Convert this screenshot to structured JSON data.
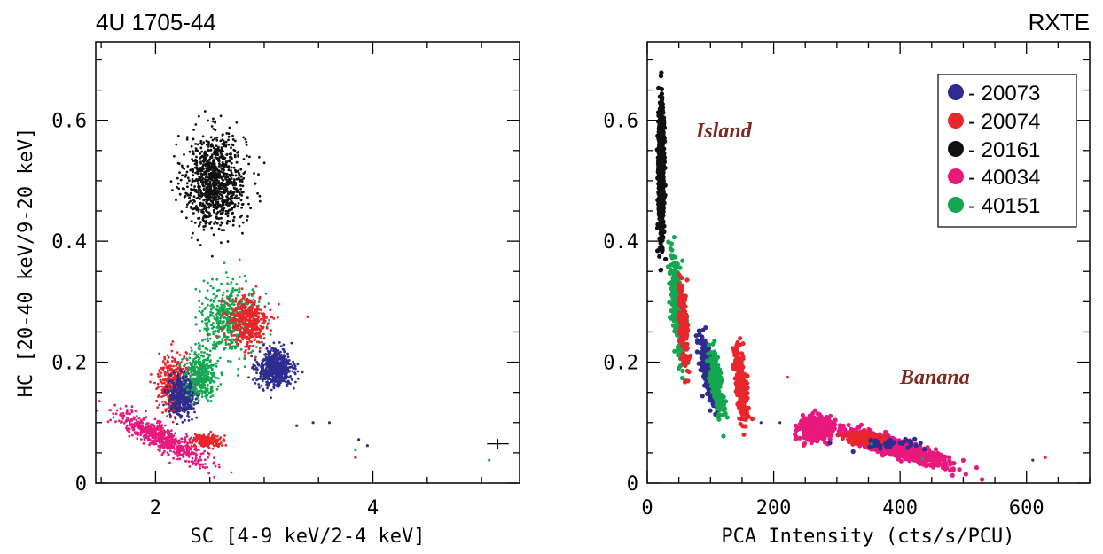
{
  "title_left": "4U 1705-44",
  "title_right": "RXTE",
  "colors": {
    "20073": "#2e2d8f",
    "20074": "#e8262b",
    "20161": "#111111",
    "40034": "#e8197c",
    "40151": "#14a650"
  },
  "legend": {
    "entries": [
      {
        "label": "- 20073",
        "obs": "20073"
      },
      {
        "label": "- 20074",
        "obs": "20074"
      },
      {
        "label": "- 20161",
        "obs": "20161"
      },
      {
        "label": "- 40034",
        "obs": "40034"
      },
      {
        "label": "- 40151",
        "obs": "40151"
      }
    ],
    "placement": "top-right"
  },
  "chart_data": [
    {
      "type": "scatter",
      "xlabel": "SC [4-9 keV/2-4 keV]",
      "ylabel": "HC [20-40 keV/9-20 keV]",
      "xlim": [
        1.45,
        5.35
      ],
      "ylim": [
        0,
        0.73
      ],
      "xticks": [
        "2",
        "4"
      ],
      "yticks": [
        "0",
        "0.2",
        "0.4",
        "0.6"
      ],
      "error_cross": {
        "x": 5.15,
        "y": 0.065,
        "dx": 0.1,
        "dy": 0.008
      },
      "clusters": [
        {
          "obs": "20161",
          "cx": 2.55,
          "cy": 0.5,
          "sx": 0.14,
          "sy": 0.038,
          "n": 1000
        },
        {
          "obs": "40151",
          "cx": 2.68,
          "cy": 0.27,
          "sx": 0.14,
          "sy": 0.03,
          "n": 500
        },
        {
          "obs": "20074",
          "cx": 2.85,
          "cy": 0.265,
          "sx": 0.09,
          "sy": 0.022,
          "n": 420
        },
        {
          "obs": "20073",
          "cx": 3.1,
          "cy": 0.19,
          "sx": 0.08,
          "sy": 0.015,
          "n": 600
        },
        {
          "obs": "20074",
          "cx": 2.15,
          "cy": 0.165,
          "sx": 0.06,
          "sy": 0.025,
          "n": 350
        },
        {
          "obs": "20073",
          "cx": 2.25,
          "cy": 0.145,
          "sx": 0.06,
          "sy": 0.017,
          "n": 500
        },
        {
          "obs": "40151",
          "cx": 2.42,
          "cy": 0.18,
          "sx": 0.07,
          "sy": 0.018,
          "n": 350
        },
        {
          "obs": "20074",
          "cx": 2.48,
          "cy": 0.07,
          "sx": 0.07,
          "sy": 0.005,
          "n": 200
        },
        {
          "obs": "40034",
          "cx": 2.05,
          "cy": 0.075,
          "sx": 0.21,
          "sy": 0.01,
          "n": 600,
          "slope": -0.09
        }
      ],
      "outliers": [
        {
          "obs": "20073",
          "x": 3.3,
          "y": 0.095
        },
        {
          "obs": "20073",
          "x": 3.45,
          "y": 0.1
        },
        {
          "obs": "20073",
          "x": 3.6,
          "y": 0.1
        },
        {
          "obs": "20073",
          "x": 3.87,
          "y": 0.072
        },
        {
          "obs": "20073",
          "x": 3.95,
          "y": 0.062
        },
        {
          "obs": "20074",
          "x": 3.84,
          "y": 0.042
        },
        {
          "obs": "40151",
          "x": 3.84,
          "y": 0.055
        },
        {
          "obs": "40151",
          "x": 5.07,
          "y": 0.038
        },
        {
          "obs": "20074",
          "x": 3.4,
          "y": 0.275
        }
      ]
    },
    {
      "type": "scatter",
      "xlabel": "PCA Intensity (cts/s/PCU)",
      "ylabel": "",
      "xlim": [
        0,
        700
      ],
      "ylim": [
        0,
        0.73
      ],
      "xticks": [
        "0",
        "200",
        "400",
        "600"
      ],
      "yticks": [
        "0",
        "0.2",
        "0.4",
        "0.6"
      ],
      "annotations": [
        {
          "text": "Island",
          "x": 85,
          "y": 0.58
        },
        {
          "text": "Banana",
          "x": 390,
          "y": 0.17
        }
      ],
      "clusters": [
        {
          "obs": "20161",
          "cx": 22,
          "cy": 0.515,
          "sx": 2.2,
          "sy": 0.055,
          "n": 700
        },
        {
          "obs": "40151",
          "cx": 48,
          "cy": 0.29,
          "sx": 6,
          "sy": 0.035,
          "n": 300,
          "slope": -0.004
        },
        {
          "obs": "20074",
          "cx": 57,
          "cy": 0.26,
          "sx": 4,
          "sy": 0.03,
          "n": 200,
          "slope": -0.005
        },
        {
          "obs": "20073",
          "cx": 95,
          "cy": 0.185,
          "sx": 6,
          "sy": 0.02,
          "n": 250,
          "slope": -0.003
        },
        {
          "obs": "40151",
          "cx": 110,
          "cy": 0.165,
          "sx": 6,
          "sy": 0.02,
          "n": 200,
          "slope": -0.003
        },
        {
          "obs": "20074",
          "cx": 148,
          "cy": 0.16,
          "sx": 5,
          "sy": 0.025,
          "n": 250,
          "slope": -0.003
        },
        {
          "obs": "40034",
          "cx": 268,
          "cy": 0.09,
          "sx": 14,
          "sy": 0.01,
          "n": 300
        },
        {
          "obs": "40034",
          "cx": 390,
          "cy": 0.06,
          "sx": 42,
          "sy": 0.007,
          "n": 700,
          "slope": -0.0003
        },
        {
          "obs": "20074",
          "cx": 340,
          "cy": 0.075,
          "sx": 14,
          "sy": 0.005,
          "n": 120
        },
        {
          "obs": "20073",
          "cx": 380,
          "cy": 0.065,
          "sx": 30,
          "sy": 0.004,
          "n": 40
        }
      ],
      "outliers": [
        {
          "obs": "20074",
          "x": 222,
          "y": 0.175
        },
        {
          "obs": "20073",
          "x": 180,
          "y": 0.1
        },
        {
          "obs": "20073",
          "x": 210,
          "y": 0.1
        },
        {
          "obs": "20073",
          "x": 610,
          "y": 0.038
        },
        {
          "obs": "20074",
          "x": 630,
          "y": 0.042
        },
        {
          "obs": "40151",
          "x": 435,
          "y": 0.04
        },
        {
          "obs": "40151",
          "x": 355,
          "y": 0.065
        }
      ]
    }
  ]
}
